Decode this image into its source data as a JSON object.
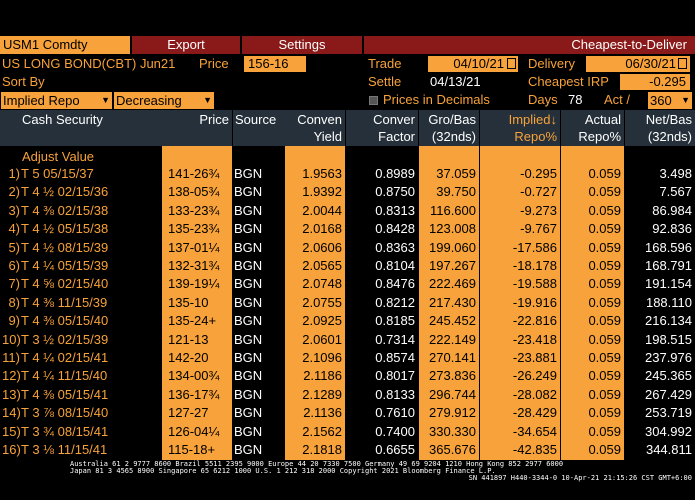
{
  "toolbar": {
    "ticker": "USM1 Comdty",
    "export_label": "Export",
    "settings_label": "Settings",
    "title": "Cheapest-to-Deliver"
  },
  "contract": {
    "name": "US LONG BOND(CBT) Jun21",
    "price_label": "Price",
    "price_value": "156-16",
    "trade_label": "Trade",
    "trade_value": "04/10/21",
    "delivery_label": "Delivery",
    "delivery_value": "06/30/21",
    "settle_label": "Settle",
    "settle_value": "04/13/21",
    "cheapest_irp_label": "Cheapest IRP",
    "cheapest_irp_value": "-0.295"
  },
  "sort": {
    "label": "Sort By",
    "field_value": "Implied Repo",
    "order_value": "Decreasing"
  },
  "options": {
    "decimals_label": "Prices in Decimals",
    "days_label": "Days",
    "days_value": "78",
    "act_label": "Act /",
    "act_value": "360"
  },
  "table": {
    "headers": {
      "security": "Cash Security",
      "price": "Price",
      "source": "Source",
      "conven_1": "Conven",
      "conven_2": "Yield",
      "factor_1": "Conver",
      "factor_2": "Factor",
      "grobas_1": "Gro/Bas",
      "grobas_2": "(32nds)",
      "implied_1": "Implied↓",
      "implied_2": "Repo%",
      "actual_1": "Actual",
      "actual_2": "Repo%",
      "netbas_1": "Net/Bas",
      "netbas_2": "(32nds)"
    },
    "adjust_label": "Adjust Value",
    "rows": [
      {
        "num": "1)",
        "security": "T 5 05/15/37",
        "price": "141-26¾",
        "source": "BGN",
        "yield": "1.9563",
        "factor": "0.8989",
        "grobas": "37.059",
        "implied": "-0.295",
        "actual": "0.059",
        "netbas": "3.498"
      },
      {
        "num": "2)",
        "security": "T 4 ½ 02/15/36",
        "price": "138-05¾",
        "source": "BGN",
        "yield": "1.9392",
        "factor": "0.8750",
        "grobas": "39.750",
        "implied": "-0.727",
        "actual": "0.059",
        "netbas": "7.567"
      },
      {
        "num": "3)",
        "security": "T 4 ⅜ 02/15/38",
        "price": "133-23¾",
        "source": "BGN",
        "yield": "2.0044",
        "factor": "0.8313",
        "grobas": "116.600",
        "implied": "-9.273",
        "actual": "0.059",
        "netbas": "86.984"
      },
      {
        "num": "4)",
        "security": "T 4 ½ 05/15/38",
        "price": "135-23¾",
        "source": "BGN",
        "yield": "2.0168",
        "factor": "0.8428",
        "grobas": "123.008",
        "implied": "-9.767",
        "actual": "0.059",
        "netbas": "92.836"
      },
      {
        "num": "5)",
        "security": "T 4 ½ 08/15/39",
        "price": "137-01¼",
        "source": "BGN",
        "yield": "2.0606",
        "factor": "0.8363",
        "grobas": "199.060",
        "implied": "-17.586",
        "actual": "0.059",
        "netbas": "168.596"
      },
      {
        "num": "6)",
        "security": "T 4 ¼ 05/15/39",
        "price": "132-31¾",
        "source": "BGN",
        "yield": "2.0565",
        "factor": "0.8104",
        "grobas": "197.267",
        "implied": "-18.178",
        "actual": "0.059",
        "netbas": "168.791"
      },
      {
        "num": "7)",
        "security": "T 4 ⅝ 02/15/40",
        "price": "139-19¼",
        "source": "BGN",
        "yield": "2.0748",
        "factor": "0.8476",
        "grobas": "222.469",
        "implied": "-19.588",
        "actual": "0.059",
        "netbas": "191.154"
      },
      {
        "num": "8)",
        "security": "T 4 ⅜ 11/15/39",
        "price": "135-10",
        "source": "BGN",
        "yield": "2.0755",
        "factor": "0.8212",
        "grobas": "217.430",
        "implied": "-19.916",
        "actual": "0.059",
        "netbas": "188.110"
      },
      {
        "num": "9)",
        "security": "T 4 ⅜ 05/15/40",
        "price": "135-24+",
        "source": "BGN",
        "yield": "2.0925",
        "factor": "0.8185",
        "grobas": "245.452",
        "implied": "-22.816",
        "actual": "0.059",
        "netbas": "216.134"
      },
      {
        "num": "10)",
        "security": "T 3 ½ 02/15/39",
        "price": "121-13",
        "source": "BGN",
        "yield": "2.0601",
        "factor": "0.7314",
        "grobas": "222.149",
        "implied": "-23.418",
        "actual": "0.059",
        "netbas": "198.515"
      },
      {
        "num": "11)",
        "security": "T 4 ¼ 02/15/41",
        "price": "142-20",
        "source": "BGN",
        "yield": "2.1096",
        "factor": "0.8574",
        "grobas": "270.141",
        "implied": "-23.881",
        "actual": "0.059",
        "netbas": "237.976"
      },
      {
        "num": "12)",
        "security": "T 4 ¼ 11/15/40",
        "price": "134-00¾",
        "source": "BGN",
        "yield": "2.1186",
        "factor": "0.8017",
        "grobas": "273.836",
        "implied": "-26.249",
        "actual": "0.059",
        "netbas": "245.365"
      },
      {
        "num": "13)",
        "security": "T 4 ⅜ 05/15/41",
        "price": "136-17¾",
        "source": "BGN",
        "yield": "2.1289",
        "factor": "0.8133",
        "grobas": "296.744",
        "implied": "-28.082",
        "actual": "0.059",
        "netbas": "267.429"
      },
      {
        "num": "14)",
        "security": "T 3 ⅞ 08/15/40",
        "price": "127-27",
        "source": "BGN",
        "yield": "2.1136",
        "factor": "0.7610",
        "grobas": "279.912",
        "implied": "-28.429",
        "actual": "0.059",
        "netbas": "253.719"
      },
      {
        "num": "15)",
        "security": "T 3 ¾ 08/15/41",
        "price": "126-04¼",
        "source": "BGN",
        "yield": "2.1562",
        "factor": "0.7400",
        "grobas": "330.330",
        "implied": "-34.654",
        "actual": "0.059",
        "netbas": "304.992"
      },
      {
        "num": "16)",
        "security": "T 3 ⅛ 11/15/41",
        "price": "115-18+",
        "source": "BGN",
        "yield": "2.1818",
        "factor": "0.6655",
        "grobas": "365.676",
        "implied": "-42.835",
        "actual": "0.059",
        "netbas": "344.811"
      }
    ]
  },
  "footer": {
    "line1": "Australia 61 2 9777 8600 Brazil 5511 2395 9000 Europe 44 20 7330 7500 Germany 49 69 9204 1210 Hong Kong 852 2977 6000",
    "line2": "Japan 81 3 4565 8900       Singapore 65 6212 1000       U.S. 1 212 318 2000       Copyright 2021 Bloomberg Finance L.P.",
    "line3": "SN 441897 H440-3344-0 10-Apr-21 21:15:26 CST  GMT+6:00"
  },
  "colors": {
    "amber": "#f7a23a",
    "header_bg": "#25303a",
    "button_bg": "#8a1a1a"
  }
}
